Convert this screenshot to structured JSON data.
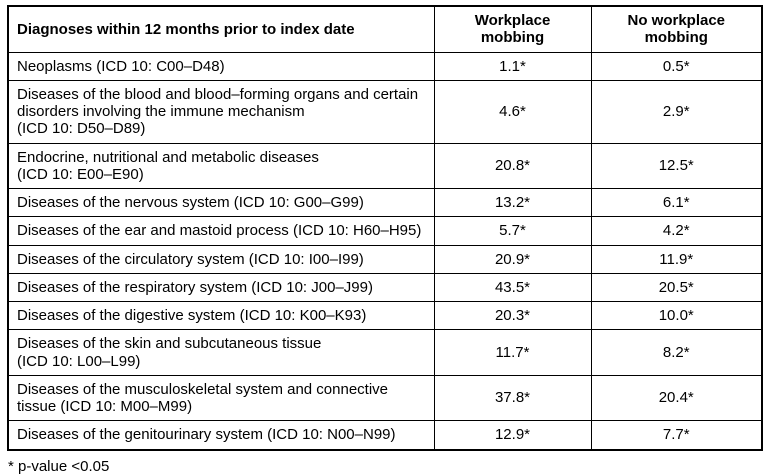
{
  "table": {
    "header": {
      "diagnosis": "Diagnoses within 12 months prior to index date",
      "workplace": "Workplace\nmobbing",
      "no_workplace": "No workplace\nmobbing"
    },
    "rows": [
      {
        "diagnosis": "Neoplasms (ICD 10: C00–D48)",
        "workplace": "1.1*",
        "no_workplace": "0.5*"
      },
      {
        "diagnosis": "Diseases of the blood and blood–forming organs and certain\ndisorders involving the immune mechanism\n(ICD 10: D50–D89)",
        "workplace": "4.6*",
        "no_workplace": "2.9*"
      },
      {
        "diagnosis": "Endocrine, nutritional and metabolic diseases\n(ICD 10: E00–E90)",
        "workplace": "20.8*",
        "no_workplace": "12.5*"
      },
      {
        "diagnosis": "Diseases of the nervous system (ICD 10: G00–G99)",
        "workplace": "13.2*",
        "no_workplace": "6.1*"
      },
      {
        "diagnosis": "Diseases of the ear and mastoid process (ICD 10: H60–H95)",
        "workplace": "5.7*",
        "no_workplace": "4.2*"
      },
      {
        "diagnosis": "Diseases of the circulatory system (ICD 10: I00–I99)",
        "workplace": "20.9*",
        "no_workplace": "11.9*"
      },
      {
        "diagnosis": "Diseases of the respiratory system (ICD 10: J00–J99)",
        "workplace": "43.5*",
        "no_workplace": "20.5*"
      },
      {
        "diagnosis": "Diseases of the digestive system (ICD 10: K00–K93)",
        "workplace": "20.3*",
        "no_workplace": "10.0*"
      },
      {
        "diagnosis": "Diseases of the skin and subcutaneous tissue\n(ICD 10: L00–L99)",
        "workplace": "11.7*",
        "no_workplace": "8.2*"
      },
      {
        "diagnosis": "Diseases of the musculoskeletal system and connective\ntissue (ICD 10: M00–M99)",
        "workplace": "37.8*",
        "no_workplace": "20.4*"
      },
      {
        "diagnosis": "Diseases of the genitourinary system (ICD 10: N00–N99)",
        "workplace": "12.9*",
        "no_workplace": "7.7*"
      }
    ]
  },
  "footnote": "* p-value <0.05"
}
